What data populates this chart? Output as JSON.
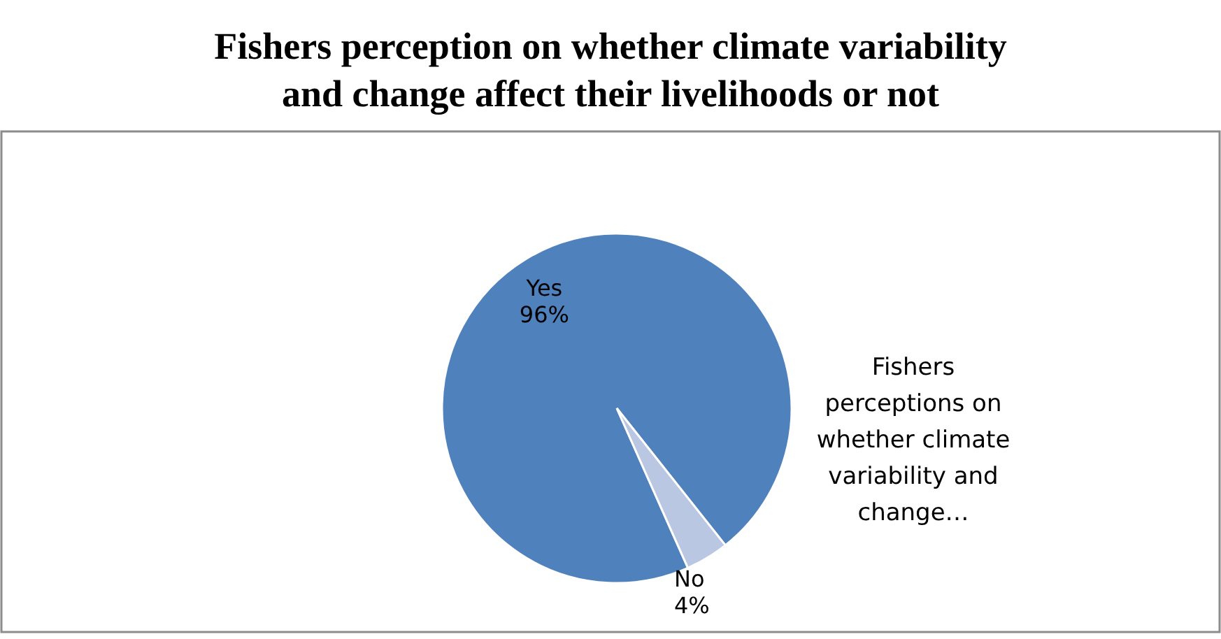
{
  "chart_data": {
    "type": "pie",
    "title": "Fishers perception on whether climate variability and change affect their livelihoods or not",
    "categories": [
      "Yes",
      "No"
    ],
    "values": [
      96,
      4
    ],
    "value_labels": [
      "96%",
      "4%"
    ],
    "colors": [
      "#4f81bd",
      "#b9c7e3"
    ],
    "annotations": [
      "Fishers perceptions on whether climate variability and change…"
    ]
  }
}
